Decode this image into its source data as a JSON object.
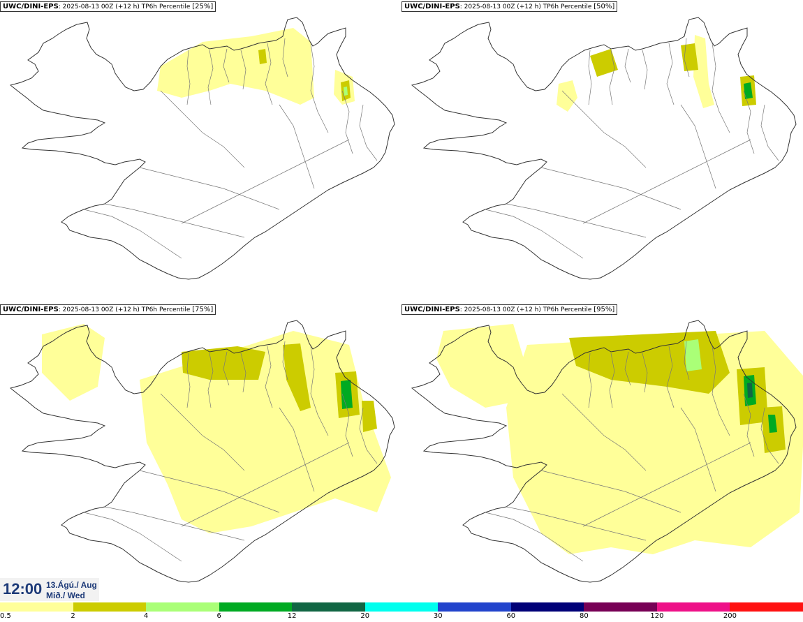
{
  "panels": [
    {
      "model": "UWC/DINI-EPS",
      "info": ": 2025-08-13 00Z (+12 h) TP6h Percentile ",
      "pct": "[25%]",
      "level": 0
    },
    {
      "model": "UWC/DINI-EPS",
      "info": ": 2025-08-13 00Z (+12 h) TP6h Percentile ",
      "pct": "[50%]",
      "level": 1
    },
    {
      "model": "UWC/DINI-EPS",
      "info": ": 2025-08-13 00Z (+12 h) TP6h Percentile ",
      "pct": "[75%]",
      "level": 2
    },
    {
      "model": "UWC/DINI-EPS",
      "info": ": 2025-08-13 00Z (+12 h) TP6h Percentile ",
      "pct": "[95%]",
      "level": 3
    }
  ],
  "valid_time": {
    "time": "12:00",
    "date_line1": "13.Ágú./ Aug",
    "date_line2": "Mið./ Wed"
  },
  "legend": {
    "colors": [
      "#ffff99",
      "#cccc00",
      "#aaff77",
      "#00aa22",
      "#116644",
      "#00ffee",
      "#2244cc",
      "#000077",
      "#770055",
      "#ee1188",
      "#ff1111"
    ],
    "labels": [
      "0.5",
      "2",
      "4",
      "6",
      "12",
      "20",
      "30",
      "60",
      "80",
      "120",
      "200"
    ]
  }
}
